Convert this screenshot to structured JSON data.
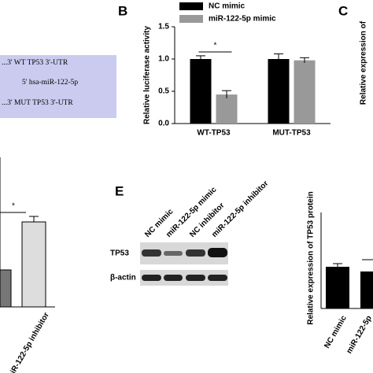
{
  "chart_data": {
    "type": "bar",
    "ylabel": "Relative luciferase activity",
    "categories": [
      "WT-TP53",
      "MUT-TP53"
    ],
    "series": [
      {
        "name": "NC mimic",
        "color": "#000000",
        "values": [
          1.0,
          1.0
        ],
        "errors": [
          0.05,
          0.08
        ]
      },
      {
        "name": "miR-122-5p mimic",
        "color": "#999999",
        "values": [
          0.45,
          0.98
        ],
        "errors": [
          0.06,
          0.04
        ]
      }
    ],
    "ylim": [
      0,
      1.5
    ],
    "yticks": [
      {
        "value": 0,
        "label": "0.0"
      },
      {
        "value": 0.5,
        "label": "0.5"
      },
      {
        "value": 1,
        "label": "1.0"
      },
      {
        "value": 1.5,
        "label": "1.5"
      }
    ],
    "annotation": "*"
  },
  "panels": {
    "b": "B",
    "c": "C",
    "e": "E"
  },
  "sequences": [
    "...3'  WT TP53  3'-UTR",
    "5'   hsa-miR-122-5p",
    "...3'  MUT TP53  3'-UTR"
  ],
  "panel_c": {
    "ylabel": "Relative expression of"
  },
  "panel_d": {
    "annotation": "*",
    "xlabel": "miR-122-5p inhibitor"
  },
  "blot": {
    "lanes": [
      "NC mimic",
      "miR-122-5p mimic",
      "NC inhibitor",
      "miR-122-5p inhibitor"
    ],
    "rows": [
      "TP53",
      "β-actin"
    ]
  },
  "panel_f": {
    "ylabel": "Relative expression of TP53 protein",
    "categories": [
      "NC mimic",
      "miR-122-5p"
    ]
  }
}
